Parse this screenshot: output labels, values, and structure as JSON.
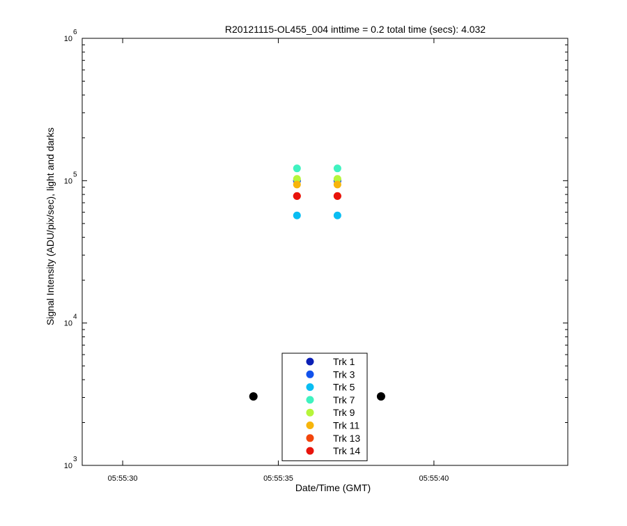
{
  "chart_data": {
    "type": "scatter",
    "title": "R20121115-OL455_004 inttime = 0.2 total time (secs): 4.032",
    "xlabel": "Date/Time (GMT)",
    "ylabel": "Signal Intensity (ADU/pix/sec), light and darks",
    "xscale": "time",
    "yscale": "log",
    "xlim": [
      "05:55:28.7",
      "05:55:44.3"
    ],
    "ylim": [
      1000,
      1000000
    ],
    "xticks": [
      {
        "value": "05:55:30",
        "label": "05:55:30"
      },
      {
        "value": "05:55:35",
        "label": "05:55:35"
      },
      {
        "value": "05:55:40",
        "label": "05:55:40"
      }
    ],
    "yticks": [
      {
        "value": 1000,
        "base": "10",
        "exp": "3"
      },
      {
        "value": 10000,
        "base": "10",
        "exp": "4"
      },
      {
        "value": 100000,
        "base": "10",
        "exp": "5"
      },
      {
        "value": 1000000,
        "base": "10",
        "exp": "6"
      }
    ],
    "grid": false,
    "legend_position": "bottom-center",
    "series": [
      {
        "name": "Trk 1",
        "color": "#0b1fb5",
        "points": [
          {
            "x": "05:55:35.6",
            "y": 100000
          },
          {
            "x": "05:55:36.9",
            "y": 100000
          }
        ]
      },
      {
        "name": "Trk 3",
        "color": "#1252ec",
        "points": [
          {
            "x": "05:55:35.6",
            "y": 100000
          },
          {
            "x": "05:55:36.9",
            "y": 100000
          }
        ]
      },
      {
        "name": "Trk 5",
        "color": "#09bdf2",
        "points": [
          {
            "x": "05:55:35.6",
            "y": 57000
          },
          {
            "x": "05:55:36.9",
            "y": 57000
          }
        ]
      },
      {
        "name": "Trk 7",
        "color": "#3ff2c0",
        "points": [
          {
            "x": "05:55:35.6",
            "y": 122000
          },
          {
            "x": "05:55:36.9",
            "y": 122000
          }
        ]
      },
      {
        "name": "Trk 9",
        "color": "#b6f53a",
        "points": [
          {
            "x": "05:55:35.6",
            "y": 103000
          },
          {
            "x": "05:55:36.9",
            "y": 103000
          }
        ]
      },
      {
        "name": "Trk 11",
        "color": "#f7b50b",
        "points": [
          {
            "x": "05:55:35.6",
            "y": 94000
          },
          {
            "x": "05:55:36.9",
            "y": 94000
          }
        ]
      },
      {
        "name": "Trk 13",
        "color": "#f2450c",
        "points": [
          {
            "x": "05:55:35.6",
            "y": 78000
          },
          {
            "x": "05:55:36.9",
            "y": 78000
          }
        ]
      },
      {
        "name": "Trk 14",
        "color": "#e8140c",
        "points": [
          {
            "x": "05:55:35.6",
            "y": 78000
          },
          {
            "x": "05:55:36.9",
            "y": 78000
          }
        ]
      }
    ],
    "darks": {
      "color": "#000000",
      "points": [
        {
          "x": "05:55:34.2",
          "y": 3050
        },
        {
          "x": "05:55:38.3",
          "y": 3050
        }
      ]
    }
  }
}
